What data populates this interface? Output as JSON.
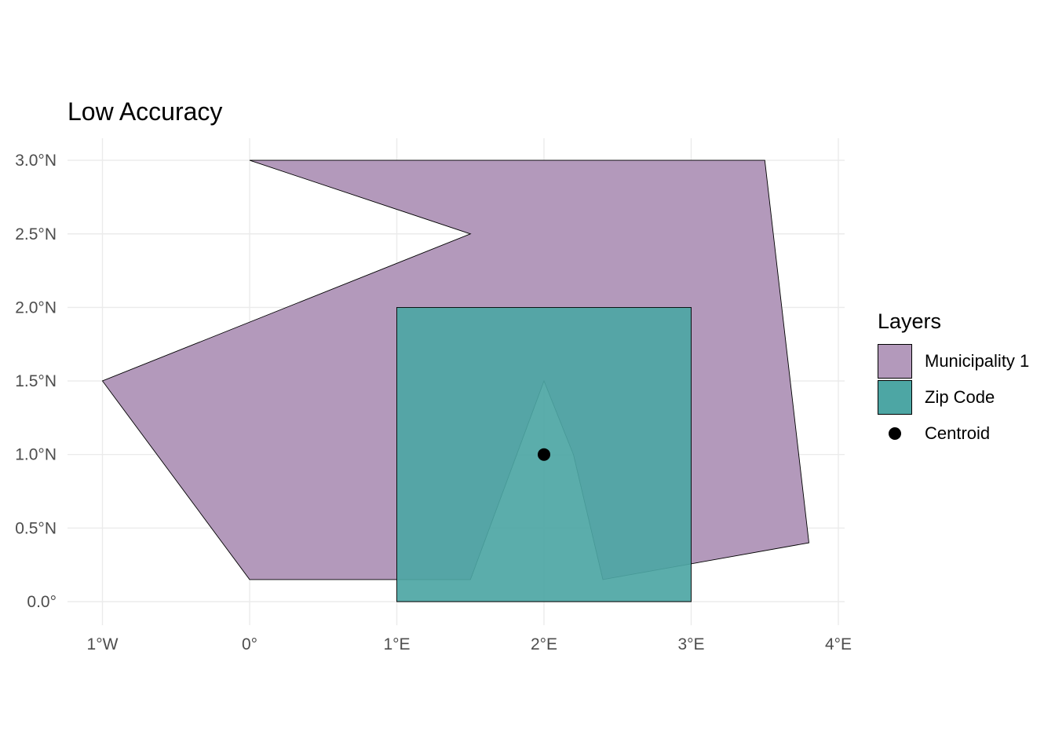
{
  "title": "Low Accuracy",
  "colors": {
    "municipality": "#b399bb",
    "zip": "#4da6a4",
    "centroid": "#000000",
    "grid": "#ebebeb",
    "tick": "#4d4d4d"
  },
  "axes": {
    "x_ticks": [
      {
        "value": -1,
        "label": "1°W"
      },
      {
        "value": 0,
        "label": "0°"
      },
      {
        "value": 1,
        "label": "1°E"
      },
      {
        "value": 2,
        "label": "2°E"
      },
      {
        "value": 3,
        "label": "3°E"
      },
      {
        "value": 4,
        "label": "4°E"
      }
    ],
    "y_ticks": [
      {
        "value": 0.0,
        "label": "0.0°"
      },
      {
        "value": 0.5,
        "label": "0.5°N"
      },
      {
        "value": 1.0,
        "label": "1.0°N"
      },
      {
        "value": 1.5,
        "label": "1.5°N"
      },
      {
        "value": 2.0,
        "label": "2.0°N"
      },
      {
        "value": 2.5,
        "label": "2.5°N"
      },
      {
        "value": 3.0,
        "label": "3.0°N"
      }
    ]
  },
  "layers": {
    "municipality": {
      "name": "Municipality 1",
      "coords": [
        [
          0,
          3
        ],
        [
          3.5,
          3
        ],
        [
          3.8,
          0.4
        ],
        [
          2.4,
          0.15
        ],
        [
          2.2,
          1.0
        ],
        [
          2.0,
          1.5
        ],
        [
          1.5,
          0.15
        ],
        [
          0,
          0.15
        ],
        [
          -1,
          1.5
        ],
        [
          1.5,
          2.5
        ],
        [
          0,
          3
        ]
      ]
    },
    "zip": {
      "name": "Zip Code",
      "coords": [
        [
          1,
          0
        ],
        [
          3,
          0
        ],
        [
          3,
          2
        ],
        [
          1,
          2
        ],
        [
          1,
          0
        ]
      ]
    },
    "centroid": {
      "name": "Centroid",
      "lon": 2.0,
      "lat": 1.0
    }
  },
  "legend": {
    "title": "Layers",
    "items": [
      {
        "label": "Municipality 1",
        "key": "box",
        "color": "#b399bb"
      },
      {
        "label": "Zip Code",
        "key": "box",
        "color": "#4da6a4"
      },
      {
        "label": "Centroid",
        "key": "point",
        "color": "#000000"
      }
    ]
  }
}
